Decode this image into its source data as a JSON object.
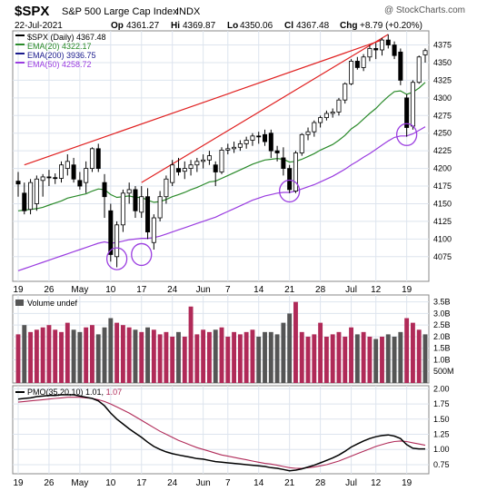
{
  "header": {
    "symbol": "$SPX",
    "name": "S&P 500 Large Cap Index",
    "exchange": "INDX",
    "watermark": "@ StockCharts.com",
    "date": "22-Jul-2021",
    "op_label": "Op",
    "op": "4361.27",
    "hi_label": "Hi",
    "hi": "4369.87",
    "lo_label": "Lo",
    "lo": "4350.06",
    "cl_label": "Cl",
    "cl": "4367.48",
    "chg_label": "Chg",
    "chg": "+8.79 (+0.20%)"
  },
  "colors": {
    "up": "#ffffff",
    "down": "#000000",
    "ema20": "#2a8a2a",
    "ema200": "#1a1a8c",
    "ema50": "#9a3ce0",
    "trendline": "#e02020",
    "circle": "#9a3ce0",
    "vol_up": "#b02a58",
    "vol_down": "#555555",
    "pmo": "#000000",
    "pmo_signal": "#b02a58",
    "grid": "#dde4ee",
    "panel_bg": "#ffffff"
  },
  "chart_data": [
    {
      "type": "candlestick",
      "panel": "price",
      "legend": [
        {
          "key": "price",
          "text": "$SPX (Daily) 4367.48"
        },
        {
          "key": "ema20",
          "text": "EMA(20) 4322.17"
        },
        {
          "key": "ema200",
          "text": "EMA(200) 3936.75"
        },
        {
          "key": "ema50",
          "text": "EMA(50) 4258.72"
        }
      ],
      "legend_placement": "top-left",
      "ylim": [
        4040,
        4395
      ],
      "yticks": [
        4075,
        4100,
        4125,
        4150,
        4175,
        4200,
        4225,
        4250,
        4275,
        4300,
        4325,
        4350,
        4375
      ],
      "xlabels": [
        {
          "i": 0,
          "label": "19"
        },
        {
          "i": 5,
          "label": "26"
        },
        {
          "i": 10,
          "label": "May"
        },
        {
          "i": 15,
          "label": "10"
        },
        {
          "i": 20,
          "label": "17"
        },
        {
          "i": 25,
          "label": "24"
        },
        {
          "i": 30,
          "label": "Jun"
        },
        {
          "i": 34,
          "label": "7"
        },
        {
          "i": 39,
          "label": "14"
        },
        {
          "i": 44,
          "label": "21"
        },
        {
          "i": 49,
          "label": "28"
        },
        {
          "i": 54,
          "label": "Jul"
        },
        {
          "i": 58,
          "label": "12"
        },
        {
          "i": 63,
          "label": "19"
        }
      ],
      "candles": [
        {
          "o": 4182,
          "h": 4195,
          "l": 4160,
          "c": 4178
        },
        {
          "o": 4165,
          "h": 4180,
          "l": 4135,
          "c": 4140
        },
        {
          "o": 4142,
          "h": 4185,
          "l": 4135,
          "c": 4180
        },
        {
          "o": 4150,
          "h": 4190,
          "l": 4140,
          "c": 4185
        },
        {
          "o": 4183,
          "h": 4192,
          "l": 4160,
          "c": 4188
        },
        {
          "o": 4188,
          "h": 4198,
          "l": 4175,
          "c": 4187
        },
        {
          "o": 4187,
          "h": 4193,
          "l": 4178,
          "c": 4186
        },
        {
          "o": 4186,
          "h": 4210,
          "l": 4180,
          "c": 4205
        },
        {
          "o": 4200,
          "h": 4220,
          "l": 4190,
          "c": 4210
        },
        {
          "o": 4205,
          "h": 4215,
          "l": 4180,
          "c": 4185
        },
        {
          "o": 4183,
          "h": 4195,
          "l": 4170,
          "c": 4175
        },
        {
          "o": 4180,
          "h": 4210,
          "l": 4165,
          "c": 4200
        },
        {
          "o": 4200,
          "h": 4230,
          "l": 4195,
          "c": 4228
        },
        {
          "o": 4228,
          "h": 4235,
          "l": 4195,
          "c": 4200
        },
        {
          "o": 4180,
          "h": 4192,
          "l": 4130,
          "c": 4160
        },
        {
          "o": 4140,
          "h": 4150,
          "l": 4068,
          "c": 4078
        },
        {
          "o": 4075,
          "h": 4125,
          "l": 4060,
          "c": 4120
        },
        {
          "o": 4120,
          "h": 4170,
          "l": 4110,
          "c": 4165
        },
        {
          "o": 4165,
          "h": 4180,
          "l": 4150,
          "c": 4170
        },
        {
          "o": 4170,
          "h": 4175,
          "l": 4130,
          "c": 4140
        },
        {
          "o": 4138,
          "h": 4175,
          "l": 4130,
          "c": 4160
        },
        {
          "o": 4160,
          "h": 4172,
          "l": 4100,
          "c": 4110
        },
        {
          "o": 4095,
          "h": 4135,
          "l": 4085,
          "c": 4130
        },
        {
          "o": 4130,
          "h": 4168,
          "l": 4125,
          "c": 4160
        },
        {
          "o": 4160,
          "h": 4190,
          "l": 4150,
          "c": 4185
        },
        {
          "o": 4180,
          "h": 4212,
          "l": 4175,
          "c": 4205
        },
        {
          "o": 4200,
          "h": 4215,
          "l": 4190,
          "c": 4195
        },
        {
          "o": 4196,
          "h": 4210,
          "l": 4185,
          "c": 4200
        },
        {
          "o": 4200,
          "h": 4212,
          "l": 4190,
          "c": 4205
        },
        {
          "o": 4205,
          "h": 4215,
          "l": 4195,
          "c": 4210
        },
        {
          "o": 4210,
          "h": 4220,
          "l": 4200,
          "c": 4212
        },
        {
          "o": 4212,
          "h": 4225,
          "l": 4205,
          "c": 4218
        },
        {
          "o": 4205,
          "h": 4210,
          "l": 4175,
          "c": 4195
        },
        {
          "o": 4195,
          "h": 4230,
          "l": 4192,
          "c": 4226
        },
        {
          "o": 4226,
          "h": 4235,
          "l": 4220,
          "c": 4228
        },
        {
          "o": 4228,
          "h": 4238,
          "l": 4222,
          "c": 4230
        },
        {
          "o": 4230,
          "h": 4240,
          "l": 4225,
          "c": 4235
        },
        {
          "o": 4235,
          "h": 4245,
          "l": 4228,
          "c": 4240
        },
        {
          "o": 4240,
          "h": 4250,
          "l": 4232,
          "c": 4246
        },
        {
          "o": 4246,
          "h": 4252,
          "l": 4235,
          "c": 4245
        },
        {
          "o": 4248,
          "h": 4255,
          "l": 4232,
          "c": 4238
        },
        {
          "o": 4250,
          "h": 4255,
          "l": 4215,
          "c": 4225
        },
        {
          "o": 4225,
          "h": 4232,
          "l": 4210,
          "c": 4222
        },
        {
          "o": 4215,
          "h": 4230,
          "l": 4190,
          "c": 4200
        },
        {
          "o": 4200,
          "h": 4205,
          "l": 4165,
          "c": 4170
        },
        {
          "o": 4168,
          "h": 4225,
          "l": 4165,
          "c": 4222
        },
        {
          "o": 4222,
          "h": 4250,
          "l": 4218,
          "c": 4248
        },
        {
          "o": 4248,
          "h": 4258,
          "l": 4240,
          "c": 4252
        },
        {
          "o": 4252,
          "h": 4268,
          "l": 4245,
          "c": 4265
        },
        {
          "o": 4265,
          "h": 4275,
          "l": 4258,
          "c": 4272
        },
        {
          "o": 4272,
          "h": 4282,
          "l": 4268,
          "c": 4278
        },
        {
          "o": 4278,
          "h": 4285,
          "l": 4272,
          "c": 4280
        },
        {
          "o": 4280,
          "h": 4300,
          "l": 4275,
          "c": 4297
        },
        {
          "o": 4297,
          "h": 4322,
          "l": 4292,
          "c": 4320
        },
        {
          "o": 4320,
          "h": 4355,
          "l": 4318,
          "c": 4352
        },
        {
          "o": 4352,
          "h": 4358,
          "l": 4340,
          "c": 4343
        },
        {
          "o": 4343,
          "h": 4362,
          "l": 4338,
          "c": 4358
        },
        {
          "o": 4358,
          "h": 4375,
          "l": 4352,
          "c": 4370
        },
        {
          "o": 4370,
          "h": 4378,
          "l": 4355,
          "c": 4368
        },
        {
          "o": 4368,
          "h": 4385,
          "l": 4360,
          "c": 4382
        },
        {
          "o": 4382,
          "h": 4390,
          "l": 4370,
          "c": 4375
        },
        {
          "o": 4375,
          "h": 4380,
          "l": 4355,
          "c": 4360
        },
        {
          "o": 4365,
          "h": 4370,
          "l": 4318,
          "c": 4325
        },
        {
          "o": 4300,
          "h": 4305,
          "l": 4245,
          "c": 4258
        },
        {
          "o": 4260,
          "h": 4325,
          "l": 4255,
          "c": 4322
        },
        {
          "o": 4322,
          "h": 4360,
          "l": 4320,
          "c": 4358
        },
        {
          "o": 4361,
          "h": 4370,
          "l": 4350,
          "c": 4367
        }
      ],
      "ema20": [
        4140,
        4141,
        4142,
        4143,
        4145,
        4148,
        4151,
        4154,
        4158,
        4160,
        4162,
        4164,
        4168,
        4171,
        4170,
        4163,
        4159,
        4160,
        4161,
        4159,
        4159,
        4155,
        4152,
        4153,
        4156,
        4160,
        4163,
        4166,
        4170,
        4173,
        4177,
        4181,
        4182,
        4186,
        4190,
        4194,
        4198,
        4202,
        4206,
        4209,
        4212,
        4213,
        4214,
        4213,
        4209,
        4210,
        4213,
        4217,
        4221,
        4226,
        4230,
        4234,
        4240,
        4247,
        4256,
        4262,
        4270,
        4278,
        4285,
        4294,
        4302,
        4309,
        4310,
        4305,
        4308,
        4314,
        4322
      ],
      "ema50": [
        4055,
        4058,
        4061,
        4064,
        4067,
        4070,
        4073,
        4076,
        4079,
        4082,
        4085,
        4088,
        4091,
        4094,
        4096,
        4094,
        4095,
        4097,
        4099,
        4100,
        4101,
        4101,
        4102,
        4104,
        4107,
        4110,
        4113,
        4116,
        4119,
        4122,
        4125,
        4128,
        4131,
        4135,
        4139,
        4143,
        4147,
        4151,
        4155,
        4158,
        4161,
        4163,
        4165,
        4166,
        4166,
        4168,
        4171,
        4174,
        4177,
        4181,
        4185,
        4189,
        4194,
        4199,
        4205,
        4210,
        4216,
        4221,
        4227,
        4233,
        4239,
        4244,
        4246,
        4246,
        4249,
        4254,
        4259
      ]
    },
    {
      "type": "bar",
      "panel": "volume",
      "legend": "Volume undef",
      "yticks": [
        {
          "v": 0.5,
          "label": "500M"
        },
        {
          "v": 1.0,
          "label": "1.0B"
        },
        {
          "v": 1.5,
          "label": "1.5B"
        },
        {
          "v": 2.0,
          "label": "2.0B"
        },
        {
          "v": 2.5,
          "label": "2.5B"
        },
        {
          "v": 3.0,
          "label": "3.0B"
        },
        {
          "v": 3.5,
          "label": "3.5B"
        }
      ],
      "ylim": [
        0,
        3.8
      ],
      "values": [
        2.1,
        2.5,
        2.2,
        2.3,
        2.4,
        2.5,
        2.3,
        2.2,
        2.6,
        2.3,
        2.2,
        2.4,
        2.5,
        2.1,
        2.4,
        2.8,
        2.6,
        2.5,
        2.4,
        2.3,
        2.2,
        2.4,
        2.3,
        2.1,
        2.2,
        2.0,
        2.2,
        2.0,
        3.3,
        2.1,
        2.3,
        2.2,
        2.3,
        2.4,
        2.0,
        2.2,
        2.1,
        2.2,
        2.3,
        2.0,
        2.2,
        2.2,
        2.1,
        2.6,
        3.0,
        3.5,
        2.2,
        2.0,
        2.1,
        2.6,
        2.0,
        2.1,
        2.2,
        2.0,
        2.4,
        2.1,
        2.2,
        2.0,
        1.9,
        2.0,
        2.1,
        2.0,
        2.2,
        2.8,
        2.6,
        2.3,
        2.1
      ],
      "up": [
        true,
        false,
        true,
        true,
        true,
        true,
        true,
        true,
        true,
        false,
        false,
        true,
        true,
        false,
        false,
        false,
        true,
        true,
        true,
        false,
        true,
        false,
        true,
        true,
        true,
        true,
        false,
        true,
        true,
        true,
        true,
        true,
        false,
        true,
        true,
        true,
        true,
        true,
        true,
        false,
        false,
        false,
        false,
        false,
        false,
        true,
        true,
        true,
        true,
        true,
        true,
        true,
        true,
        true,
        true,
        false,
        true,
        true,
        false,
        true,
        false,
        false,
        false,
        true,
        true,
        true,
        false
      ]
    },
    {
      "type": "line",
      "panel": "pmo",
      "legend_main": "PMO(35,20,10)",
      "legend_pmo": "1.01",
      "legend_signal": "1.07",
      "ylim": [
        0.6,
        2.05
      ],
      "yticks": [
        0.75,
        1.0,
        1.25,
        1.5,
        1.75,
        2.0
      ],
      "series": [
        {
          "key": "pmo",
          "values": [
            1.83,
            1.84,
            1.85,
            1.87,
            1.88,
            1.89,
            1.89,
            1.9,
            1.9,
            1.9,
            1.88,
            1.86,
            1.84,
            1.8,
            1.72,
            1.6,
            1.5,
            1.42,
            1.34,
            1.27,
            1.2,
            1.12,
            1.05,
            1.0,
            0.96,
            0.93,
            0.91,
            0.89,
            0.87,
            0.85,
            0.84,
            0.82,
            0.8,
            0.79,
            0.78,
            0.77,
            0.76,
            0.75,
            0.74,
            0.73,
            0.72,
            0.7,
            0.69,
            0.67,
            0.65,
            0.66,
            0.68,
            0.71,
            0.74,
            0.78,
            0.82,
            0.86,
            0.91,
            0.97,
            1.04,
            1.09,
            1.14,
            1.18,
            1.21,
            1.23,
            1.24,
            1.22,
            1.18,
            1.08,
            1.02,
            1.01,
            1.01
          ]
        },
        {
          "key": "signal",
          "values": [
            1.78,
            1.79,
            1.8,
            1.81,
            1.82,
            1.83,
            1.84,
            1.85,
            1.86,
            1.86,
            1.86,
            1.85,
            1.84,
            1.82,
            1.79,
            1.75,
            1.7,
            1.65,
            1.6,
            1.54,
            1.48,
            1.42,
            1.36,
            1.3,
            1.25,
            1.2,
            1.15,
            1.11,
            1.07,
            1.03,
            1.0,
            0.97,
            0.94,
            0.91,
            0.89,
            0.87,
            0.85,
            0.83,
            0.81,
            0.79,
            0.77,
            0.76,
            0.74,
            0.72,
            0.7,
            0.69,
            0.69,
            0.7,
            0.71,
            0.73,
            0.75,
            0.78,
            0.81,
            0.85,
            0.89,
            0.93,
            0.97,
            1.01,
            1.05,
            1.08,
            1.11,
            1.13,
            1.14,
            1.13,
            1.11,
            1.09,
            1.07
          ]
        }
      ]
    }
  ],
  "annotations": {
    "trendlines": [
      {
        "i1": 1,
        "v1": 4205,
        "i2": 59,
        "v2": 4382
      },
      {
        "i1": 20,
        "v1": 4180,
        "i2": 60,
        "v2": 4390
      }
    ],
    "circles": [
      {
        "i": 16,
        "v": 4072
      },
      {
        "i": 20,
        "v": 4078
      },
      {
        "i": 44,
        "v": 4168
      },
      {
        "i": 63,
        "v": 4248
      }
    ]
  }
}
